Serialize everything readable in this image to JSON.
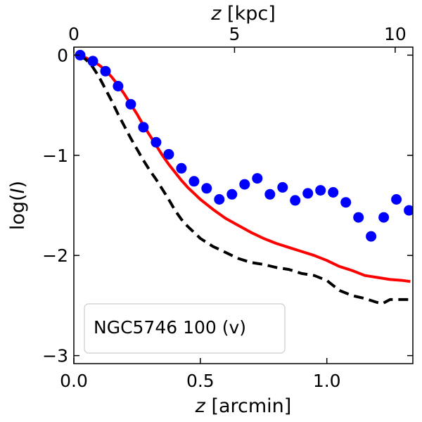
{
  "chart_data": {
    "type": "line",
    "xlabel_var": "z",
    "xlabel_unit": " [arcmin]",
    "xlabel_top_var": "z",
    "xlabel_top_unit": " [kpc]",
    "ylabel_pre": "log(",
    "ylabel_var": "I",
    "ylabel_post": ")",
    "xlim": [
      0,
      1.34
    ],
    "ylim": [
      -3.08,
      0.08
    ],
    "top_xlim": [
      0,
      10.55
    ],
    "x_ticks": [
      {
        "value": 0.0,
        "label": "0.0"
      },
      {
        "value": 0.5,
        "label": "0.5"
      },
      {
        "value": 1.0,
        "label": "1.0"
      }
    ],
    "top_x_ticks": [
      {
        "value": 0,
        "label": "0"
      },
      {
        "value": 5,
        "label": "5"
      },
      {
        "value": 10,
        "label": "10"
      }
    ],
    "y_ticks": [
      {
        "value": 0,
        "label": "0"
      },
      {
        "value": -1,
        "label": "−1"
      },
      {
        "value": -2,
        "label": "−2"
      },
      {
        "value": -3,
        "label": "−3"
      }
    ],
    "legend": {
      "text": "NGC5746 100 (v)",
      "placement": "lower-left"
    },
    "series": [
      {
        "kind": "scatter",
        "color": "#0000ff",
        "x": [
          0.025,
          0.075,
          0.125,
          0.175,
          0.225,
          0.275,
          0.325,
          0.375,
          0.425,
          0.475,
          0.525,
          0.575,
          0.625,
          0.675,
          0.725,
          0.775,
          0.825,
          0.875,
          0.925,
          0.975,
          1.025,
          1.075,
          1.125,
          1.175,
          1.225,
          1.275,
          1.325
        ],
        "y": [
          0.0,
          -0.06,
          -0.16,
          -0.31,
          -0.49,
          -0.72,
          -0.87,
          -0.99,
          -1.13,
          -1.26,
          -1.33,
          -1.44,
          -1.39,
          -1.29,
          -1.23,
          -1.39,
          -1.32,
          -1.45,
          -1.38,
          -1.35,
          -1.37,
          -1.47,
          -1.62,
          -1.81,
          -1.62,
          -1.44,
          -1.55
        ]
      },
      {
        "kind": "line",
        "style": "solid",
        "color": "#ff0000",
        "x": [
          0.025,
          0.05,
          0.075,
          0.1,
          0.125,
          0.15,
          0.175,
          0.2,
          0.225,
          0.25,
          0.275,
          0.3,
          0.325,
          0.35,
          0.375,
          0.4,
          0.425,
          0.45,
          0.475,
          0.5,
          0.55,
          0.6,
          0.65,
          0.7,
          0.75,
          0.8,
          0.85,
          0.9,
          0.95,
          1.0,
          1.05,
          1.1,
          1.15,
          1.2,
          1.25,
          1.3,
          1.33
        ],
        "y": [
          0.0,
          -0.03,
          -0.06,
          -0.1,
          -0.15,
          -0.22,
          -0.3,
          -0.39,
          -0.49,
          -0.59,
          -0.7,
          -0.8,
          -0.9,
          -1.0,
          -1.09,
          -1.17,
          -1.25,
          -1.32,
          -1.38,
          -1.44,
          -1.54,
          -1.63,
          -1.7,
          -1.77,
          -1.83,
          -1.88,
          -1.92,
          -1.96,
          -2.0,
          -2.05,
          -2.11,
          -2.15,
          -2.2,
          -2.22,
          -2.24,
          -2.25,
          -2.26
        ]
      },
      {
        "kind": "line",
        "style": "dashed",
        "color": "#000000",
        "x": [
          0.025,
          0.05,
          0.075,
          0.1,
          0.125,
          0.15,
          0.175,
          0.2,
          0.225,
          0.25,
          0.275,
          0.3,
          0.325,
          0.35,
          0.375,
          0.4,
          0.425,
          0.45,
          0.475,
          0.5,
          0.55,
          0.6,
          0.65,
          0.7,
          0.75,
          0.8,
          0.85,
          0.9,
          0.95,
          1.0,
          1.05,
          1.1,
          1.15,
          1.2,
          1.22,
          1.25,
          1.3,
          1.33
        ],
        "y": [
          0.0,
          -0.05,
          -0.12,
          -0.22,
          -0.34,
          -0.46,
          -0.59,
          -0.71,
          -0.83,
          -0.94,
          -1.05,
          -1.15,
          -1.24,
          -1.34,
          -1.44,
          -1.55,
          -1.64,
          -1.71,
          -1.77,
          -1.83,
          -1.91,
          -1.97,
          -2.03,
          -2.07,
          -2.09,
          -2.12,
          -2.14,
          -2.18,
          -2.2,
          -2.25,
          -2.35,
          -2.4,
          -2.43,
          -2.47,
          -2.48,
          -2.44,
          -2.44,
          -2.44
        ]
      }
    ]
  }
}
